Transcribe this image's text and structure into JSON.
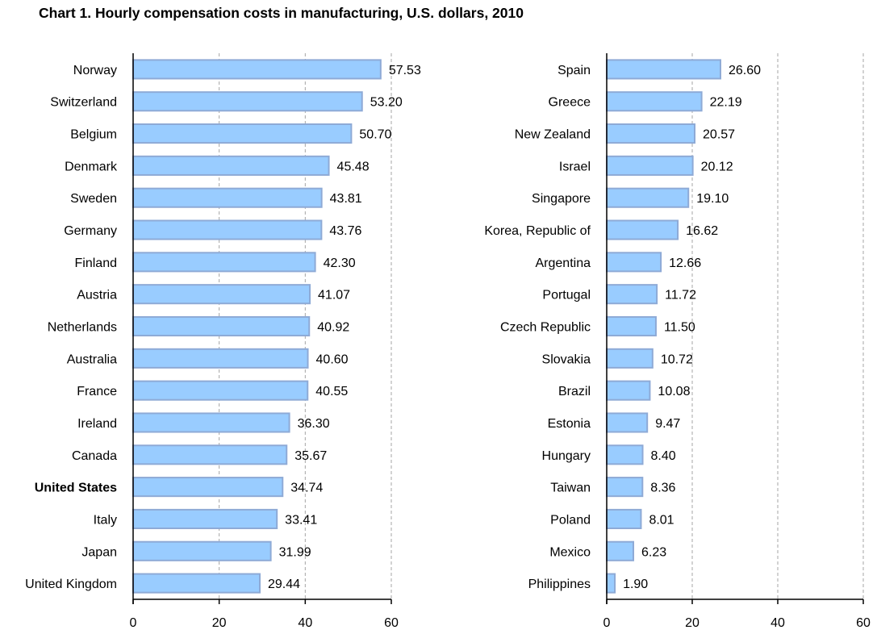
{
  "chart_data": [
    {
      "type": "bar",
      "orientation": "horizontal",
      "title": "Chart 1. Hourly compensation costs in manufacturing, U.S. dollars, 2010",
      "xlabel": "",
      "ylabel": "",
      "xlim": [
        0,
        60
      ],
      "xticks": [
        "0",
        "20",
        "40",
        "60"
      ],
      "grid": true,
      "legend": "none",
      "bold_categories": [
        "United States"
      ],
      "categories": [
        "Norway",
        "Switzerland",
        "Belgium",
        "Denmark",
        "Sweden",
        "Germany",
        "Finland",
        "Austria",
        "Netherlands",
        "Australia",
        "France",
        "Ireland",
        "Canada",
        "United States",
        "Italy",
        "Japan",
        "United Kingdom"
      ],
      "values": [
        57.53,
        53.2,
        50.7,
        45.48,
        43.81,
        43.76,
        42.3,
        41.07,
        40.92,
        40.6,
        40.55,
        36.3,
        35.67,
        34.74,
        33.41,
        31.99,
        29.44
      ],
      "value_labels": [
        "57.53",
        "53.20",
        "50.70",
        "45.48",
        "43.81",
        "43.76",
        "42.30",
        "41.07",
        "40.92",
        "40.60",
        "40.55",
        "36.30",
        "35.67",
        "34.74",
        "33.41",
        "31.99",
        "29.44"
      ]
    },
    {
      "type": "bar",
      "orientation": "horizontal",
      "title": "",
      "xlabel": "",
      "ylabel": "",
      "xlim": [
        0,
        60
      ],
      "xticks": [
        "0",
        "20",
        "40",
        "60"
      ],
      "grid": true,
      "legend": "none",
      "bold_categories": [],
      "categories": [
        "Spain",
        "Greece",
        "New Zealand",
        "Israel",
        "Singapore",
        "Korea, Republic of",
        "Argentina",
        "Portugal",
        "Czech Republic",
        "Slovakia",
        "Brazil",
        "Estonia",
        "Hungary",
        "Taiwan",
        "Poland",
        "Mexico",
        "Philippines"
      ],
      "values": [
        26.6,
        22.19,
        20.57,
        20.12,
        19.1,
        16.62,
        12.66,
        11.72,
        11.5,
        10.72,
        10.08,
        9.47,
        8.4,
        8.36,
        8.01,
        6.23,
        1.9
      ],
      "value_labels": [
        "26.60",
        "22.19",
        "20.57",
        "20.12",
        "19.10",
        "16.62",
        "12.66",
        "11.72",
        "11.50",
        "10.72",
        "10.08",
        "9.47",
        "8.40",
        "8.36",
        "8.01",
        "6.23",
        "1.90"
      ]
    }
  ],
  "colors": {
    "bar_fill": "#99ccff",
    "bar_border": "#8eaad6",
    "gridline": "#a6a6a6",
    "axis": "#000000"
  }
}
